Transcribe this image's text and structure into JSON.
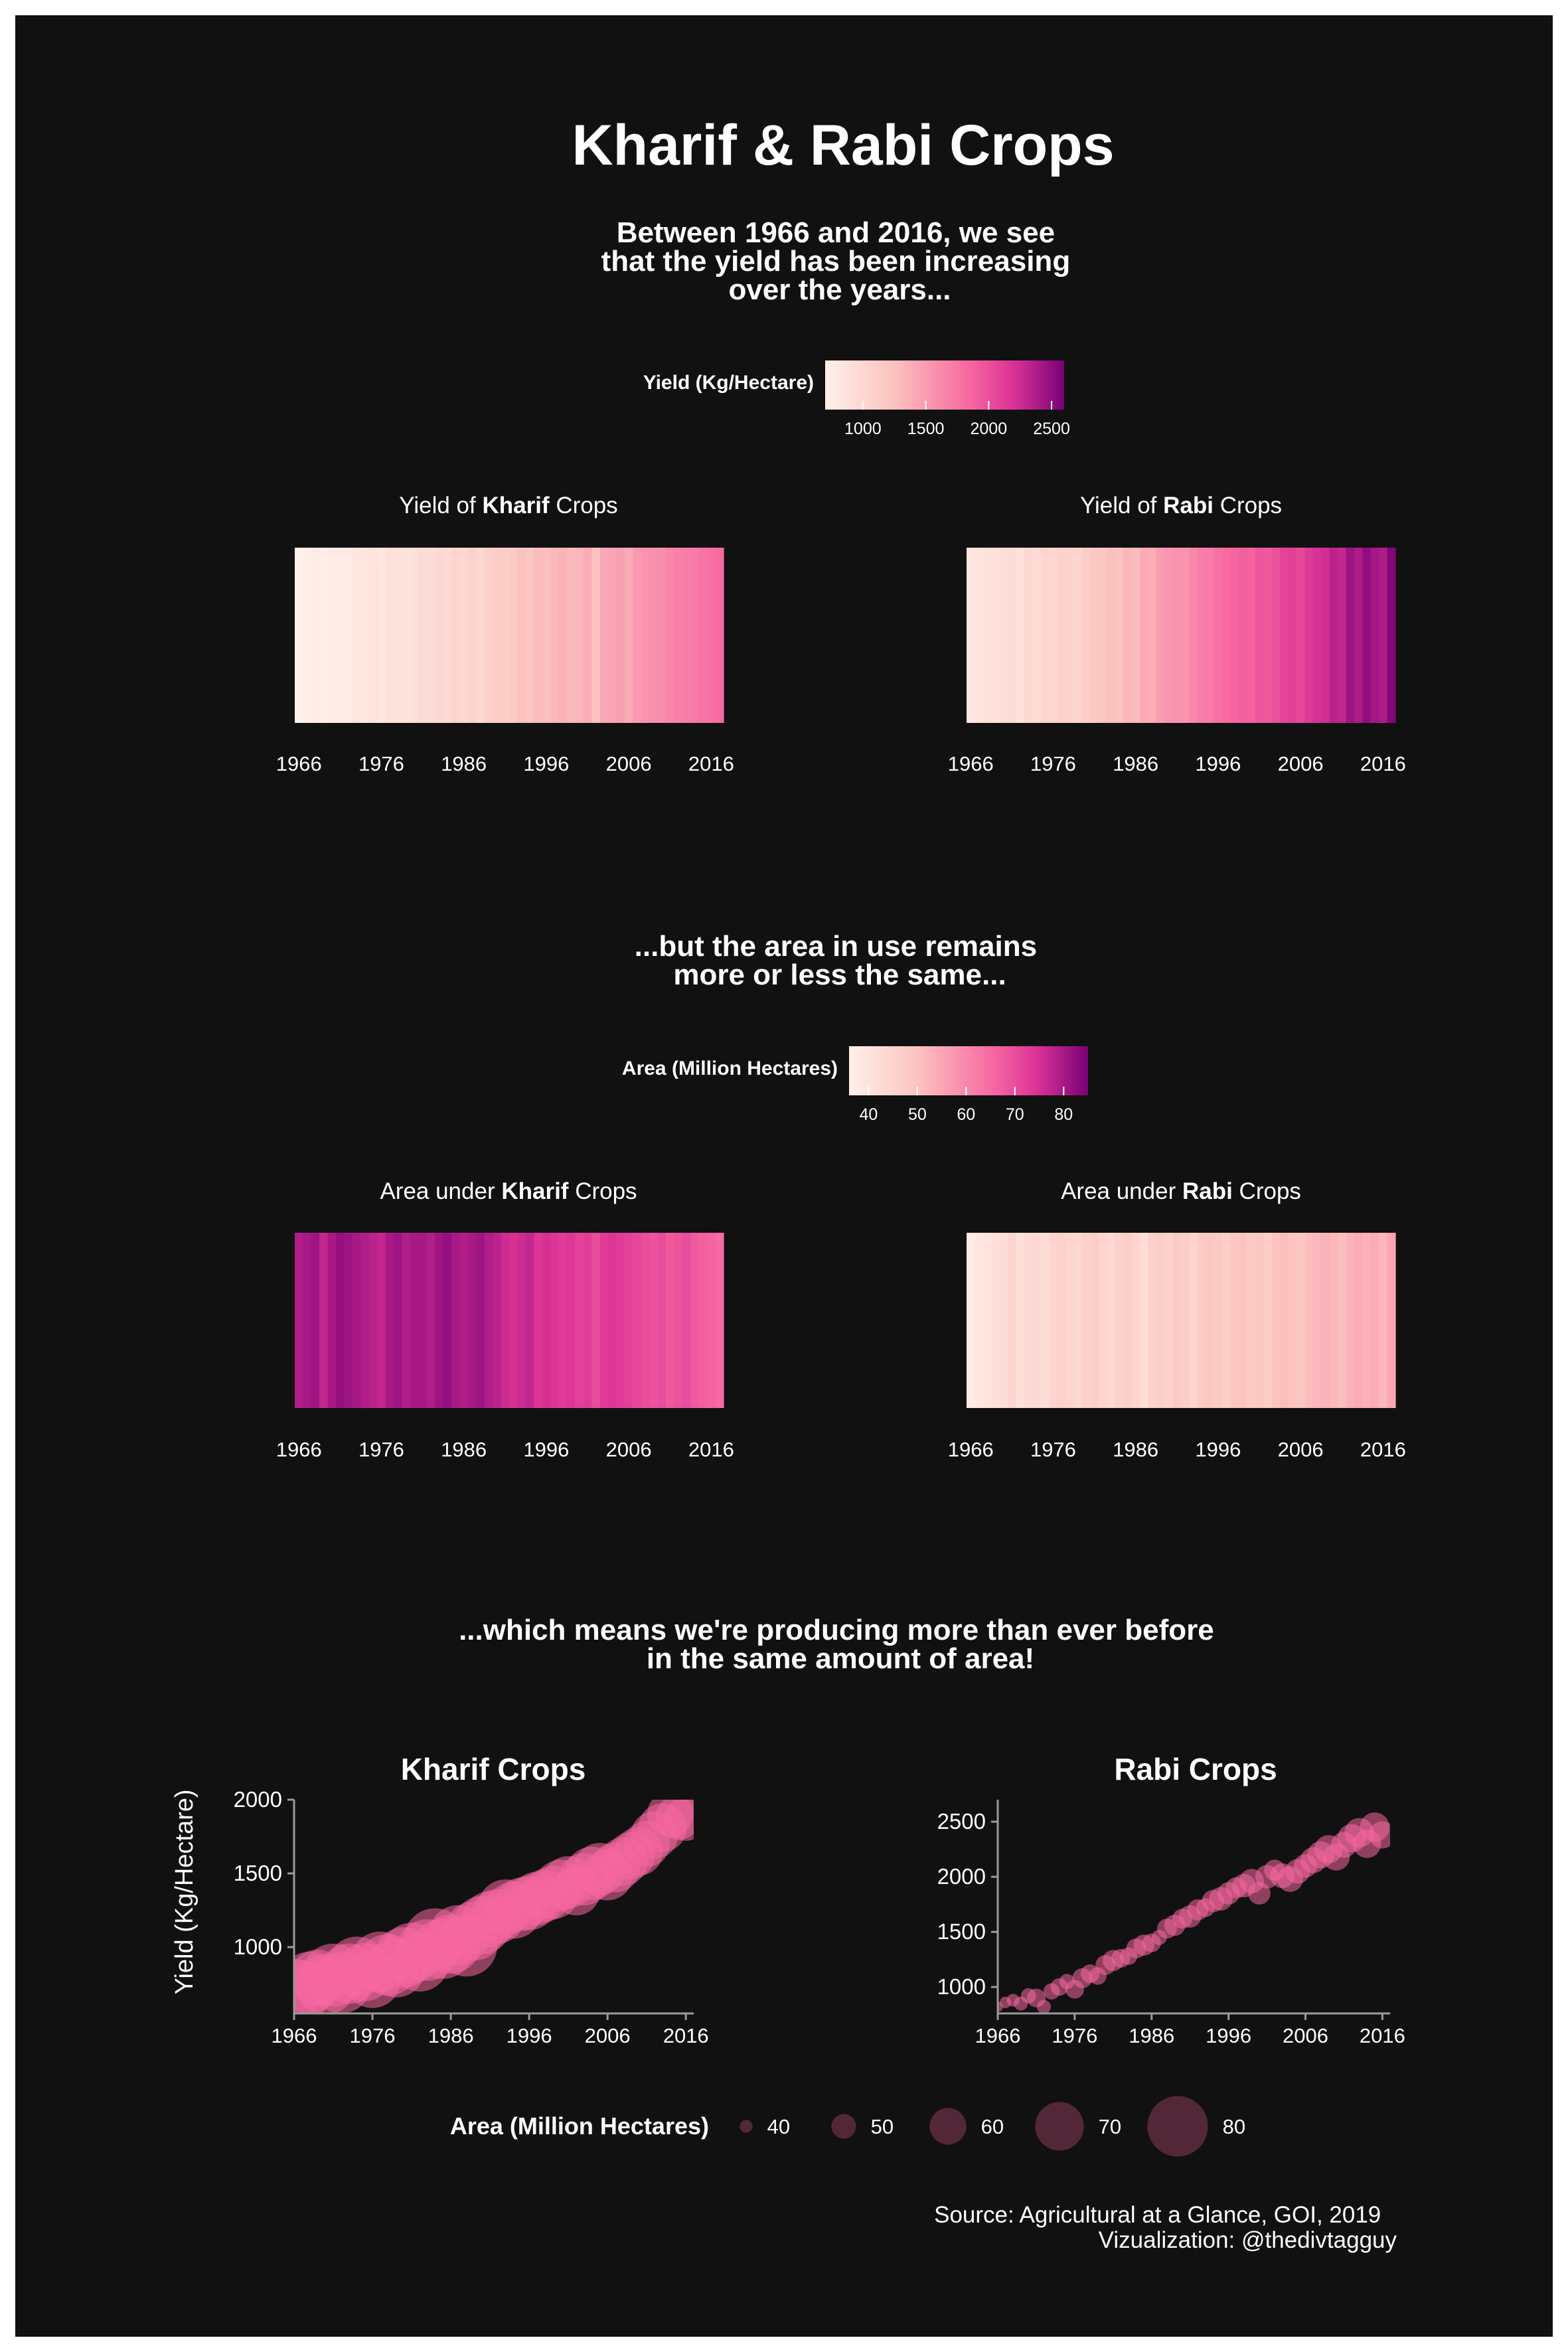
{
  "title": "Kharif & Rabi Crops",
  "section1": {
    "caption": [
      "Between 1966 and 2016, we see",
      "that the yield has been increasing",
      "over the years..."
    ],
    "legend_title": "Yield (Kg/Hectare)",
    "legend_ticks": [
      "1000",
      "1500",
      "2000",
      "2500"
    ]
  },
  "section2": {
    "caption": [
      "...but the area in use remains",
      "more or less the same..."
    ],
    "legend_title": "Area (Million Hectares)",
    "legend_ticks": [
      "40",
      "50",
      "60",
      "70",
      "80"
    ]
  },
  "section3": {
    "caption": [
      "...which means we're producing more than ever before",
      "in the same amount of area!"
    ],
    "y_label": "Yield (Kg/Hectare)",
    "size_legend_title": "Area (Million Hectares)",
    "size_legend_values": [
      "40",
      "50",
      "60",
      "70",
      "80"
    ]
  },
  "panels": {
    "kharif_yield": {
      "prefix": "Yield of ",
      "bold": "Kharif",
      "suffix": " Crops"
    },
    "rabi_yield": {
      "prefix": "Yield of ",
      "bold": "Rabi",
      "suffix": " Crops"
    },
    "kharif_area": {
      "prefix": "Area under ",
      "bold": "Kharif",
      "suffix": " Crops"
    },
    "rabi_area": {
      "prefix": "Area under ",
      "bold": "Rabi",
      "suffix": " Crops"
    }
  },
  "year_ticks": [
    "1966",
    "1976",
    "1986",
    "1996",
    "2006",
    "2016"
  ],
  "source": [
    "Source: Agricultural at a Glance, GOI, 2019",
    "Vizualization: @thedivtagguy"
  ],
  "colors": {
    "background": "#111111",
    "scale": [
      "#fff0ea",
      "#fcc5c0",
      "#f768a1",
      "#dd3497",
      "#7a0177"
    ],
    "bubble": "#f768a1",
    "size_legend": "#5a2a3c"
  },
  "chart_data": [
    {
      "type": "heatmap",
      "title": "Yield of Kharif Crops",
      "variable": "Yield (Kg/Hectare)",
      "x_range": [
        1966,
        2017
      ],
      "color_domain": [
        700,
        2600
      ],
      "values": [
        700,
        710,
        760,
        740,
        780,
        770,
        760,
        830,
        810,
        860,
        820,
        900,
        880,
        870,
        900,
        950,
        930,
        990,
        960,
        1050,
        1010,
        1070,
        1000,
        1110,
        1150,
        1130,
        1170,
        1250,
        1220,
        1290,
        1280,
        1320,
        1350,
        1300,
        1330,
        1400,
        1250,
        1420,
        1450,
        1480,
        1400,
        1520,
        1560,
        1580,
        1600,
        1650,
        1680,
        1700,
        1720,
        1760,
        1790,
        1830
      ]
    },
    {
      "type": "heatmap",
      "title": "Yield of Rabi Crops",
      "variable": "Yield (Kg/Hectare)",
      "x_range": [
        1966,
        2017
      ],
      "color_domain": [
        700,
        2600
      ],
      "values": [
        820,
        850,
        900,
        860,
        920,
        950,
        880,
        1000,
        940,
        1050,
        1000,
        1100,
        1060,
        1050,
        1130,
        1190,
        1220,
        1260,
        1240,
        1330,
        1300,
        1400,
        1380,
        1500,
        1540,
        1570,
        1560,
        1640,
        1700,
        1720,
        1780,
        1820,
        1860,
        1890,
        1880,
        1960,
        1940,
        2000,
        2080,
        2100,
        2050,
        2150,
        2200,
        2230,
        2330,
        2290,
        2450,
        2380,
        2500,
        2420,
        2380,
        2560
      ]
    },
    {
      "type": "heatmap",
      "title": "Area under Kharif Crops",
      "variable": "Area (Million Hectares)",
      "x_range": [
        1966,
        2017
      ],
      "color_domain": [
        36,
        85
      ],
      "values": [
        79,
        80,
        81,
        77,
        80,
        82,
        81,
        80,
        79,
        78,
        77,
        80,
        81,
        79,
        80,
        80,
        79,
        81,
        82,
        80,
        79,
        80,
        81,
        79,
        78,
        76,
        75,
        76,
        77,
        74,
        75,
        74,
        73,
        74,
        72,
        73,
        70,
        73,
        74,
        73,
        72,
        71,
        70,
        69,
        70,
        68,
        69,
        70,
        68,
        67,
        66,
        65
      ]
    },
    {
      "type": "heatmap",
      "title": "Area under Rabi Crops",
      "variable": "Area (Million Hectares)",
      "x_range": [
        1966,
        2017
      ],
      "color_domain": [
        36,
        85
      ],
      "values": [
        38,
        39,
        40,
        41,
        42,
        45,
        41,
        43,
        44,
        42,
        45,
        46,
        45,
        44,
        46,
        47,
        45,
        44,
        46,
        47,
        45,
        42,
        46,
        47,
        46,
        48,
        47,
        45,
        48,
        49,
        48,
        47,
        49,
        50,
        48,
        49,
        47,
        50,
        51,
        50,
        49,
        51,
        52,
        53,
        52,
        51,
        53,
        54,
        53,
        54,
        52,
        55
      ]
    },
    {
      "type": "scatter",
      "title": "Kharif Crops",
      "x": [
        1966,
        1967,
        1968,
        1969,
        1970,
        1971,
        1972,
        1973,
        1974,
        1975,
        1976,
        1977,
        1978,
        1979,
        1980,
        1981,
        1982,
        1983,
        1984,
        1985,
        1986,
        1987,
        1988,
        1989,
        1990,
        1991,
        1992,
        1993,
        1994,
        1995,
        1996,
        1997,
        1998,
        1999,
        2000,
        2001,
        2002,
        2003,
        2004,
        2005,
        2006,
        2007,
        2008,
        2009,
        2010,
        2011,
        2012,
        2013,
        2014,
        2015,
        2016
      ],
      "y": [
        720,
        705,
        760,
        790,
        745,
        810,
        760,
        820,
        870,
        830,
        780,
        900,
        880,
        860,
        930,
        960,
        900,
        980,
        1050,
        990,
        1020,
        1080,
        1010,
        1110,
        1150,
        1190,
        1210,
        1270,
        1250,
        1290,
        1300,
        1330,
        1350,
        1370,
        1420,
        1440,
        1380,
        1460,
        1500,
        1530,
        1490,
        1540,
        1580,
        1620,
        1650,
        1700,
        1760,
        1810,
        1900,
        1880,
        1870
      ],
      "sizes": [
        79,
        80,
        81,
        77,
        80,
        82,
        81,
        80,
        79,
        78,
        77,
        80,
        81,
        79,
        80,
        80,
        79,
        81,
        82,
        80,
        79,
        80,
        81,
        79,
        78,
        76,
        75,
        76,
        77,
        74,
        75,
        74,
        73,
        74,
        72,
        73,
        70,
        73,
        74,
        73,
        72,
        71,
        70,
        69,
        70,
        68,
        69,
        70,
        68,
        67,
        66
      ],
      "ylabel": "Yield (Kg/Hectare)",
      "xlim": [
        1966,
        2017
      ],
      "ylim": [
        550,
        2000
      ],
      "y_ticks": [
        1000,
        1500,
        2000
      ],
      "size_variable": "Area (Million Hectares)"
    },
    {
      "type": "scatter",
      "title": "Rabi Crops",
      "x": [
        1966,
        1967,
        1968,
        1969,
        1970,
        1971,
        1972,
        1973,
        1974,
        1975,
        1976,
        1977,
        1978,
        1979,
        1980,
        1981,
        1982,
        1983,
        1984,
        1985,
        1986,
        1987,
        1988,
        1989,
        1990,
        1991,
        1992,
        1993,
        1994,
        1995,
        1996,
        1997,
        1998,
        1999,
        2000,
        2001,
        2002,
        2003,
        2004,
        2005,
        2006,
        2007,
        2008,
        2009,
        2010,
        2011,
        2012,
        2013,
        2014,
        2015,
        2016
      ],
      "y": [
        820,
        860,
        880,
        850,
        920,
        900,
        820,
        960,
        1000,
        1050,
        980,
        1080,
        1120,
        1100,
        1200,
        1240,
        1260,
        1280,
        1350,
        1380,
        1400,
        1450,
        1530,
        1560,
        1620,
        1640,
        1700,
        1720,
        1780,
        1800,
        1850,
        1900,
        1920,
        1960,
        1850,
        2000,
        2060,
        2010,
        1980,
        2050,
        2100,
        2150,
        2200,
        2250,
        2180,
        2290,
        2350,
        2400,
        2300,
        2450,
        2380
      ],
      "sizes": [
        38,
        39,
        40,
        41,
        42,
        45,
        41,
        43,
        44,
        42,
        45,
        46,
        45,
        44,
        46,
        47,
        45,
        44,
        46,
        47,
        45,
        42,
        46,
        47,
        46,
        48,
        47,
        45,
        48,
        49,
        48,
        47,
        49,
        50,
        48,
        49,
        47,
        50,
        51,
        50,
        49,
        51,
        52,
        53,
        52,
        51,
        53,
        54,
        53,
        54,
        52
      ],
      "xlim": [
        1966,
        2017
      ],
      "ylim": [
        760,
        2700
      ],
      "y_ticks": [
        1000,
        1500,
        2000,
        2500
      ],
      "size_variable": "Area (Million Hectares)"
    }
  ]
}
